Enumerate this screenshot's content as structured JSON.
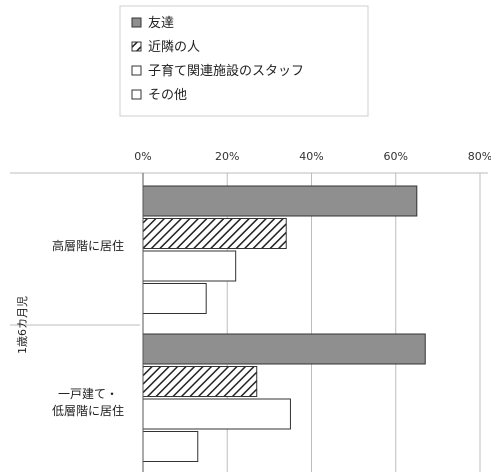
{
  "chart_data": {
    "type": "bar",
    "orientation": "horizontal",
    "group_label": "1歳6カ月児",
    "categories": [
      [
        "高層階に居住"
      ],
      [
        "一戸建て・",
        "低層階に居住"
      ]
    ],
    "series": [
      {
        "name": "友達",
        "values": [
          65,
          67
        ],
        "pattern": "gray"
      },
      {
        "name": "近隣の人",
        "values": [
          34,
          27
        ],
        "pattern": "hatch"
      },
      {
        "name": "子育て関連施設のスタッフ",
        "values": [
          22,
          35
        ],
        "pattern": "white"
      },
      {
        "name": "その他",
        "values": [
          15,
          13
        ],
        "pattern": "white"
      }
    ],
    "x_ticks": [
      "0%",
      "20%",
      "40%",
      "60%",
      "80%"
    ],
    "xlim": [
      0,
      80
    ],
    "grid": true,
    "legend_position": "top"
  },
  "colors": {
    "gray_fill": "#8f8f8f",
    "bar_stroke": "#333333",
    "grid": "#bdbdbd"
  }
}
